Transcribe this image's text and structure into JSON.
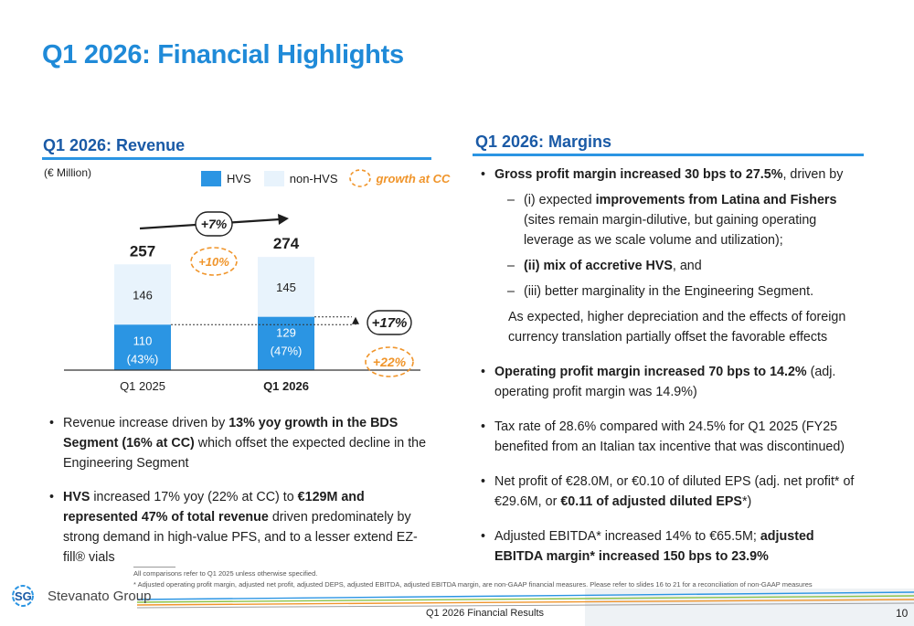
{
  "title": "Q1 2026: Financial Highlights",
  "revenue": {
    "section_title": "Q1 2026: Revenue",
    "unit": "(€ Million)",
    "legend": {
      "hvs": "HVS",
      "non_hvs": "non-HVS",
      "growth": "growth at CC"
    },
    "bullets": [
      {
        "parts": [
          {
            "text": "Revenue increase driven by ",
            "bold": false
          },
          {
            "text": "13% yoy growth in the BDS Segment (16% at CC)",
            "bold": true
          },
          {
            "text": " which offset the expected decline in the Engineering Segment",
            "bold": false
          }
        ]
      },
      {
        "parts": [
          {
            "text": "HVS",
            "bold": true
          },
          {
            "text": " increased 17% yoy (22% at CC) to ",
            "bold": false
          },
          {
            "text": "€129M and represented 47% of total revenue",
            "bold": true
          },
          {
            "text": " driven predominately by strong demand in high-value PFS, and to a lesser extend EZ-fill® vials",
            "bold": false
          }
        ]
      }
    ]
  },
  "chart_data": {
    "type": "bar",
    "stacked": true,
    "categories": [
      "Q1 2025",
      "Q1 2026"
    ],
    "series": [
      {
        "name": "HVS",
        "values": [
          110,
          129
        ],
        "labels": [
          "110",
          "129"
        ],
        "share": [
          "(43%)",
          "(47%)"
        ]
      },
      {
        "name": "non-HVS",
        "values": [
          146,
          145
        ],
        "labels": [
          "146",
          "145"
        ]
      }
    ],
    "totals": [
      "257",
      "274"
    ],
    "total_growth": "+7%",
    "total_growth_cc": "+10%",
    "hvs_growth": "+17%",
    "hvs_growth_cc": "+22%",
    "colors": {
      "hvs": "#2b95e3",
      "non_hvs": "#e8f3fc",
      "growth": "#f0952b"
    }
  },
  "margins": {
    "section_title": "Q1 2026: Margins",
    "bullets": [
      {
        "parts": [
          {
            "text": "Gross profit margin increased 30 bps to 27.5%",
            "bold": true
          },
          {
            "text": ", driven by",
            "bold": false
          }
        ],
        "sub": [
          {
            "parts": [
              {
                "text": "(i) expected ",
                "bold": false
              },
              {
                "text": "improvements from Latina and Fishers",
                "bold": true
              },
              {
                "text": " (sites remain margin-dilutive, but gaining operating leverage as we scale volume and utilization);",
                "bold": false
              }
            ]
          },
          {
            "parts": [
              {
                "text": "(ii) mix of accretive HVS",
                "bold": true
              },
              {
                "text": ", and",
                "bold": false
              }
            ]
          },
          {
            "parts": [
              {
                "text": "(iii) better marginality in the Engineering Segment.",
                "bold": false
              }
            ]
          }
        ],
        "note": "As expected, higher depreciation and the effects of foreign currency translation partially offset the favorable effects"
      },
      {
        "parts": [
          {
            "text": "Operating profit margin increased 70 bps to 14.2%",
            "bold": true
          },
          {
            "text": " (adj. operating profit margin was 14.9%)",
            "bold": false
          }
        ]
      },
      {
        "parts": [
          {
            "text": "Tax rate of 28.6% compared with 24.5% for Q1 2025 (FY25 benefited from an Italian tax incentive that was discontinued)",
            "bold": false
          }
        ]
      },
      {
        "parts": [
          {
            "text": "Net profit of €28.0M, or €0.10 of diluted EPS (adj. net profit* of €29.6M, or ",
            "bold": false
          },
          {
            "text": "€0.11 of adjusted diluted EPS",
            "bold": true
          },
          {
            "text": "*)",
            "bold": false
          }
        ]
      },
      {
        "parts": [
          {
            "text": "Adjusted EBITDA* increased 14% to €65.5M; ",
            "bold": false
          },
          {
            "text": "adjusted EBITDA margin* increased 150 bps to 23.9%",
            "bold": true
          }
        ]
      }
    ]
  },
  "footnotes": [
    "All comparisons refer to Q1 2025 unless otherwise specified.",
    "* Adjusted operating profit margin, adjusted net profit, adjusted DEPS, adjusted EBITDA, adjusted EBITDA margin, are non-GAAP financial measures. Please refer to slides 16 to 21 for a reconciliation of non-GAAP measures"
  ],
  "footer": {
    "logo_text": "Stevanato Group",
    "logo_mark": "SG",
    "center": "Q1 2026 Financial Results",
    "page": "10"
  }
}
